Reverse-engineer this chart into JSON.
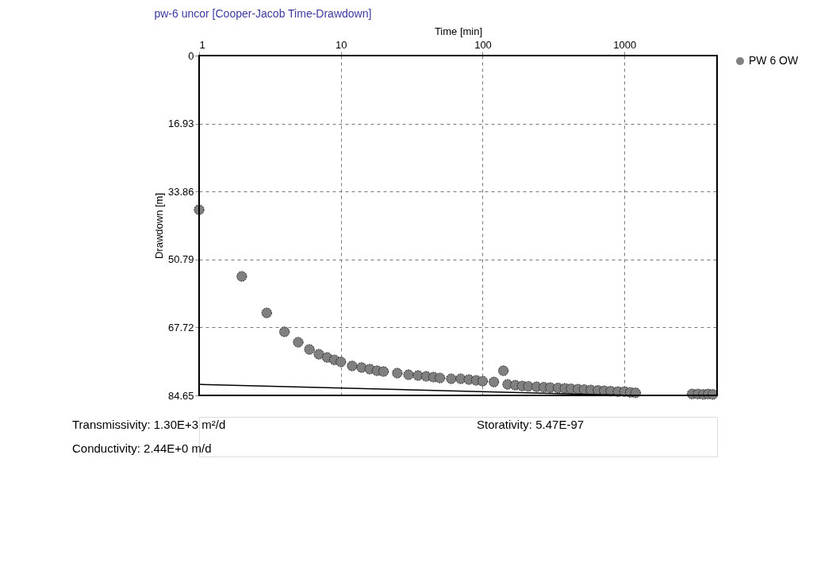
{
  "chart_data": {
    "type": "scatter",
    "title": "pw-6 uncor [Cooper-Jacob Time-Drawdown]",
    "xlabel": "Time [min]",
    "ylabel": "Drawdown [m]",
    "log": "x",
    "xlim": [
      1,
      4500
    ],
    "xticks": [
      1,
      10,
      100,
      1000
    ],
    "ylim": [
      84.65,
      0
    ],
    "yticks": [
      0,
      16.93,
      33.86,
      50.79,
      67.72,
      84.65
    ],
    "grid": true,
    "legend": "top right",
    "marker": "circle",
    "series": [
      {
        "name": "PW 6 OW",
        "color": "#808080",
        "x": [
          1,
          2,
          3,
          4,
          5,
          6,
          7,
          8,
          9,
          10,
          12,
          14,
          16,
          18,
          20,
          25,
          30,
          35,
          40,
          45,
          50,
          60,
          70,
          80,
          90,
          100,
          120,
          140,
          150,
          170,
          190,
          210,
          240,
          270,
          300,
          340,
          380,
          420,
          470,
          520,
          580,
          650,
          720,
          800,
          900,
          1000,
          1100,
          1200,
          3000,
          3300,
          3600,
          3900,
          4200
        ],
        "values": [
          38.4,
          55.0,
          64.1,
          68.8,
          71.4,
          73.2,
          74.4,
          75.2,
          75.8,
          76.3,
          77.3,
          77.7,
          78.1,
          78.5,
          78.7,
          79.1,
          79.5,
          79.7,
          79.9,
          80.1,
          80.3,
          80.5,
          80.5,
          80.7,
          80.9,
          81.1,
          81.3,
          78.5,
          81.9,
          82.1,
          82.3,
          82.4,
          82.5,
          82.6,
          82.7,
          82.8,
          82.9,
          83.0,
          83.1,
          83.2,
          83.3,
          83.4,
          83.5,
          83.6,
          83.7,
          83.7,
          83.9,
          84.0,
          84.3,
          84.3,
          84.4,
          84.3,
          84.4
        ]
      },
      {
        "type": "line",
        "color": "#000000",
        "marker": "none",
        "line_style": "solid",
        "x": [
          1,
          1000
        ],
        "values": [
          81.9,
          84.6
        ]
      }
    ],
    "annotations": [
      "Transmissivity: 1.30E+3 m²/d",
      "Storativity: 5.47E-97",
      "Conductivity: 2.44E+0 m/d"
    ]
  }
}
